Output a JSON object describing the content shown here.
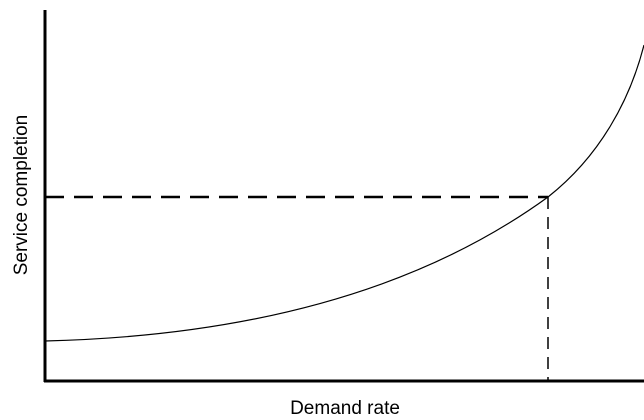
{
  "diagram": {
    "y_axis_label": "Service completion",
    "x_axis_label": "Demand rate"
  }
}
